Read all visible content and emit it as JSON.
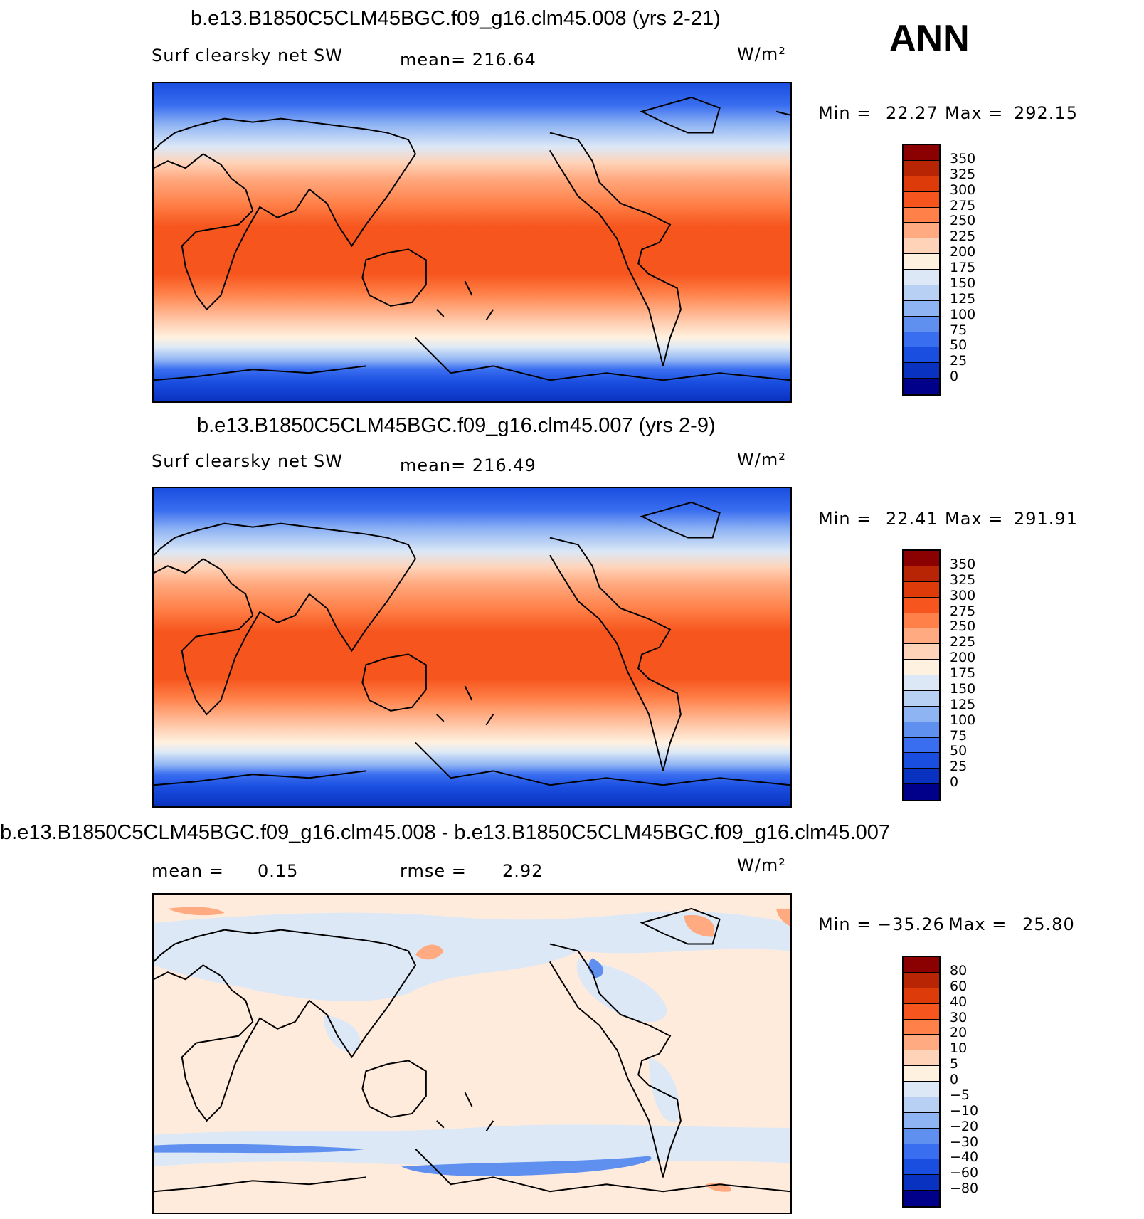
{
  "season": "ANN",
  "units": "W/m²",
  "panels": [
    {
      "title": "b.e13.B1850C5CLM45BGC.f09_g16.clm45.008 (yrs 2-21)",
      "variable": "Surf clearsky net SW",
      "mean_text": "mean= 216.64",
      "min_label": "Min =",
      "min_value": "22.27",
      "max_label": "Max =",
      "max_value": "292.15",
      "colorbar": {
        "colors": [
          "#8b0000",
          "#b82505",
          "#de3b0b",
          "#f6561e",
          "#ff8048",
          "#ffaa80",
          "#ffd3b8",
          "#fff1e0",
          "#dce8f6",
          "#b8d0f4",
          "#8fb4f4",
          "#5f90f0",
          "#3a6ef0",
          "#1a4ee0",
          "#0a32c0",
          "#00008b"
        ],
        "ticks": [
          "350",
          "325",
          "300",
          "275",
          "250",
          "225",
          "200",
          "175",
          "150",
          "125",
          "100",
          "75",
          "50",
          "25",
          "0"
        ]
      }
    },
    {
      "title": "b.e13.B1850C5CLM45BGC.f09_g16.clm45.007 (yrs 2-9)",
      "variable": "Surf clearsky net SW",
      "mean_text": "mean= 216.49",
      "min_label": "Min =",
      "min_value": "22.41",
      "max_label": "Max =",
      "max_value": "291.91",
      "colorbar": {
        "colors": [
          "#8b0000",
          "#b82505",
          "#de3b0b",
          "#f6561e",
          "#ff8048",
          "#ffaa80",
          "#ffd3b8",
          "#fff1e0",
          "#dce8f6",
          "#b8d0f4",
          "#8fb4f4",
          "#5f90f0",
          "#3a6ef0",
          "#1a4ee0",
          "#0a32c0",
          "#00008b"
        ],
        "ticks": [
          "350",
          "325",
          "300",
          "275",
          "250",
          "225",
          "200",
          "175",
          "150",
          "125",
          "100",
          "75",
          "50",
          "25",
          "0"
        ]
      }
    },
    {
      "title": "b.e13.B1850C5CLM45BGC.f09_g16.clm45.008 - b.e13.B1850C5CLM45BGC.f09_g16.clm45.007",
      "mean_label": "mean =",
      "mean_value": "0.15",
      "rmse_label": "rmse =",
      "rmse_value": "2.92",
      "min_label": "Min =",
      "min_value": "−35.26",
      "max_label": "Max =",
      "max_value": "25.80",
      "colorbar": {
        "colors": [
          "#8b0000",
          "#b82505",
          "#de3b0b",
          "#f6561e",
          "#ff8048",
          "#ffaa80",
          "#ffd3b8",
          "#fff1e0",
          "#dce8f6",
          "#b8d0f4",
          "#8fb4f4",
          "#5f90f0",
          "#3a6ef0",
          "#1a4ee0",
          "#0a32c0",
          "#00008b"
        ],
        "ticks": [
          "80",
          "60",
          "40",
          "30",
          "20",
          "10",
          "5",
          "0",
          "−5",
          "−10",
          "−20",
          "−30",
          "−40",
          "−60",
          "−80"
        ]
      }
    }
  ]
}
